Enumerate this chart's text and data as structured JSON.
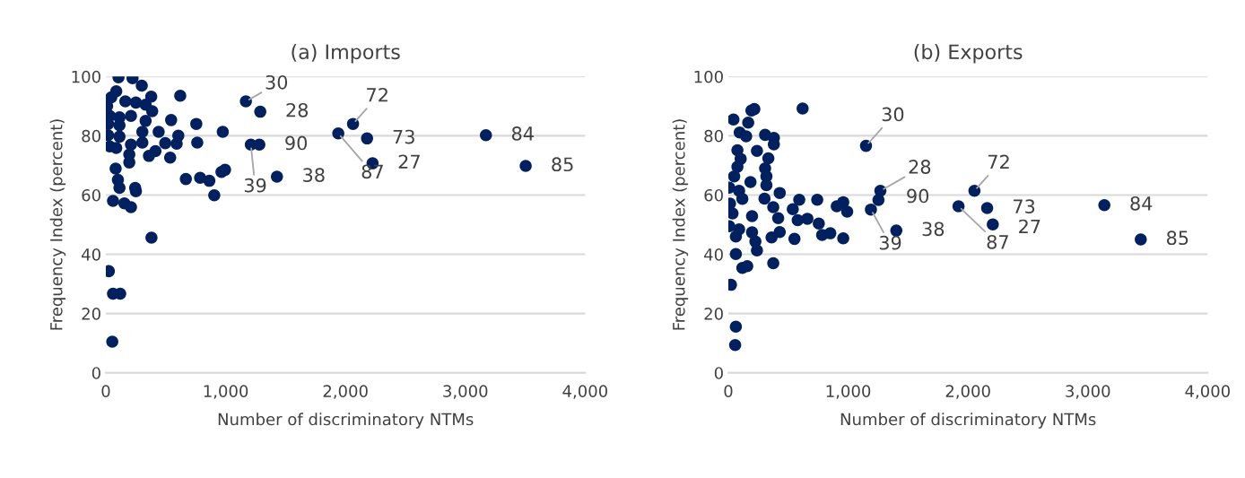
{
  "chart_data": [
    {
      "type": "scatter",
      "title": "(a) Imports",
      "xlabel": "Number of discriminatory NTMs",
      "ylabel": "Frequency Index (percent)",
      "marker": "circle",
      "grid": "y",
      "xlim": [
        0,
        4000
      ],
      "xticks": [
        {
          "value": 0,
          "label": "0"
        },
        {
          "value": 1000,
          "label": "1,000"
        },
        {
          "value": 2000,
          "label": "2,000"
        },
        {
          "value": 3000,
          "label": "3,000"
        },
        {
          "value": 4000,
          "label": "4,000"
        }
      ],
      "ylim": [
        0,
        100
      ],
      "yticks": [
        0,
        20,
        40,
        60,
        80,
        100
      ],
      "series": [
        {
          "color": "#002060",
          "x": [
            106,
            223,
            300,
            379,
            621,
            87,
            46,
            11,
            163,
            251,
            332,
            387,
            33,
            114,
            210,
            332,
            545,
            19,
            114,
            755,
            19,
            114,
            305,
            441,
            605,
            976,
            33,
            87,
            210,
            305,
            496,
            591,
            763,
            196,
            360,
            414,
            537,
            196,
            82,
            101,
            114,
            245,
            251,
            60,
            155,
            210,
            668,
            787,
            864,
            905,
            965,
            995,
            381,
            25,
            60,
            120,
            54,
            1169,
            1289,
            1210,
            1281,
            1428,
            1940,
            2063,
            2180,
            2226,
            3172,
            3504
          ],
          "values": [
            99.7,
            99.4,
            96.9,
            93.2,
            93.5,
            95,
            93,
            90,
            91.6,
            91.2,
            90.5,
            88.3,
            86.7,
            86.2,
            86.7,
            85,
            85.3,
            84,
            83.5,
            84,
            80.2,
            79.7,
            81.3,
            81.3,
            80,
            81.3,
            76.4,
            75.9,
            77,
            77.7,
            77.5,
            77.3,
            77.7,
            73.7,
            73.2,
            74.8,
            72.6,
            71,
            68.9,
            65.1,
            62.4,
            62.4,
            61.3,
            58,
            57.2,
            55.9,
            65.4,
            65.8,
            64.8,
            59.9,
            67.8,
            68.5,
            45.6,
            34.3,
            26.7,
            26.7,
            10.5,
            91.6,
            88.1,
            77,
            77,
            66.2,
            80.8,
            84,
            79.1,
            70.7,
            80.2,
            69.8
          ]
        }
      ],
      "annotations": [
        {
          "text": "30",
          "x": 1169,
          "y": 91.6
        },
        {
          "text": "28",
          "x": 1289,
          "y": 88.1
        },
        {
          "text": "90",
          "x": 1281,
          "y": 77
        },
        {
          "text": "39",
          "x": 1210,
          "y": 77
        },
        {
          "text": "38",
          "x": 1428,
          "y": 66.2
        },
        {
          "text": "87",
          "x": 1940,
          "y": 80.8
        },
        {
          "text": "72",
          "x": 2063,
          "y": 84
        },
        {
          "text": "73",
          "x": 2180,
          "y": 79.1
        },
        {
          "text": "27",
          "x": 2226,
          "y": 70.7
        },
        {
          "text": "84",
          "x": 3172,
          "y": 80.2
        },
        {
          "text": "85",
          "x": 3504,
          "y": 69.8
        }
      ]
    },
    {
      "type": "scatter",
      "title": "(b) Exports",
      "xlabel": "Number of discriminatory NTMs",
      "ylabel": "Frequency Index (percent)",
      "marker": "circle",
      "grid": "y",
      "xlim": [
        0,
        4000
      ],
      "xticks": [
        {
          "value": 0,
          "label": "0"
        },
        {
          "value": 1000,
          "label": "1,000"
        },
        {
          "value": 2000,
          "label": "2,000"
        },
        {
          "value": 3000,
          "label": "3,000"
        },
        {
          "value": 4000,
          "label": "4,000"
        }
      ],
      "ylim": [
        0,
        100
      ],
      "yticks": [
        0,
        20,
        40,
        60,
        80,
        100
      ],
      "series": [
        {
          "color": "#002060",
          "x": [
            217,
            620,
            43,
            166,
            193,
            95,
            149,
            307,
            380,
            380,
            76,
            239,
            334,
            103,
            76,
            307,
            49,
            185,
            318,
            318,
            8,
            90,
            429,
            302,
            375,
            592,
            742,
            905,
            959,
            992,
            14,
            117,
            35,
            198,
            416,
            538,
            579,
            660,
            755,
            8,
            90,
            198,
            361,
            429,
            552,
            783,
            851,
            959,
            63,
            226,
            239,
            63,
            117,
            158,
            375,
            22,
            63,
            57,
            1149,
            1269,
            1253,
            1190,
            1402,
            1921,
            2054,
            2160,
            2207,
            3138,
            3442
          ],
          "values": [
            89,
            89.2,
            85.5,
            84.4,
            88.5,
            81.1,
            79.8,
            80.3,
            79.3,
            77.1,
            75.1,
            74.9,
            72.4,
            72.2,
            69.5,
            69,
            66.3,
            64.4,
            66.3,
            63.3,
            62.5,
            61.4,
            60.7,
            58.8,
            55.9,
            58.4,
            58.4,
            56.2,
            57.6,
            54.4,
            57.1,
            58.7,
            53.8,
            52.9,
            52.2,
            55.2,
            51.5,
            52,
            50.4,
            49.5,
            48.4,
            47.4,
            45.7,
            47.5,
            45.2,
            46.5,
            47.1,
            45.4,
            46,
            44.3,
            41.3,
            40.1,
            35.4,
            36,
            37,
            29.7,
            15.6,
            9.4,
            76.6,
            61.4,
            58.3,
            55.1,
            48,
            56.2,
            61.4,
            55.6,
            50.1,
            56.6,
            45
          ]
        }
      ],
      "annotations": [
        {
          "text": "30",
          "x": 1149,
          "y": 76.6
        },
        {
          "text": "28",
          "x": 1269,
          "y": 61.4
        },
        {
          "text": "90",
          "x": 1253,
          "y": 58.3
        },
        {
          "text": "39",
          "x": 1190,
          "y": 55.1
        },
        {
          "text": "38",
          "x": 1402,
          "y": 48
        },
        {
          "text": "87",
          "x": 1921,
          "y": 56.2
        },
        {
          "text": "72",
          "x": 2054,
          "y": 61.4
        },
        {
          "text": "73",
          "x": 2160,
          "y": 55.6
        },
        {
          "text": "27",
          "x": 2207,
          "y": 50.1
        },
        {
          "text": "84",
          "x": 3138,
          "y": 56.6
        },
        {
          "text": "85",
          "x": 3442,
          "y": 45
        }
      ]
    }
  ]
}
